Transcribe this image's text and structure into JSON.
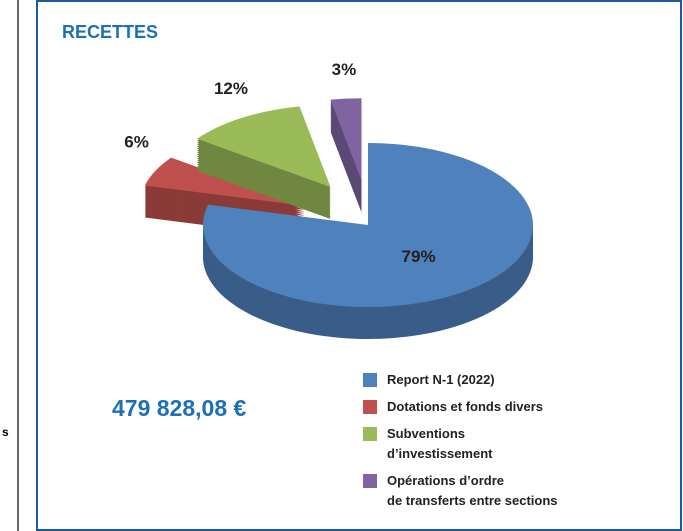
{
  "chart_data": {
    "type": "pie",
    "title": "RECETTES",
    "categories": [
      "Report N-1 (2022)",
      "Dotations et fonds divers",
      "Subventions\nd’investissement",
      "Opérations d’ordre\nde transferts entre sections"
    ],
    "values": [
      79,
      6,
      12,
      3
    ],
    "value_labels": [
      "79%",
      "6%",
      "12%",
      "3%"
    ],
    "colors": [
      "#4f81bd",
      "#c0504d",
      "#9bbb59",
      "#8064a2"
    ],
    "annotation": "479 828,08 €"
  },
  "fragment": "s"
}
